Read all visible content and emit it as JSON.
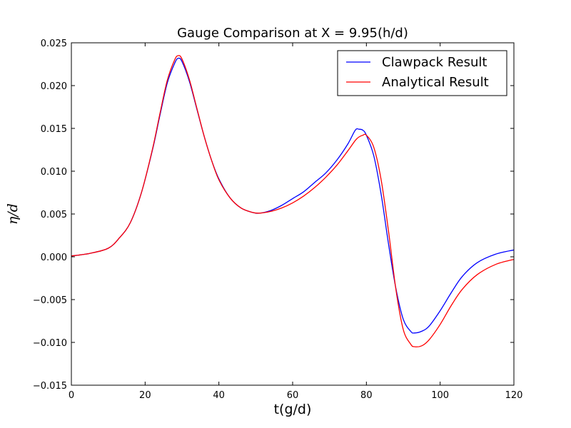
{
  "chart_data": {
    "type": "line",
    "title": "Gauge Comparison at X = 9.95(h/d)",
    "xlabel": "t(g/d)",
    "ylabel": "η/d",
    "xlim": [
      0,
      120
    ],
    "ylim": [
      -0.015,
      0.025
    ],
    "xticks": [
      0,
      20,
      40,
      60,
      80,
      100,
      120
    ],
    "xtick_labels": [
      "0",
      "20",
      "40",
      "60",
      "80",
      "100",
      "120"
    ],
    "yticks": [
      -0.015,
      -0.01,
      -0.005,
      0,
      0.005,
      0.01,
      0.015,
      0.02,
      0.025
    ],
    "ytick_labels": [
      "−0.015",
      "−0.010",
      "−0.005",
      "0.000",
      "0.005",
      "0.010",
      "0.015",
      "0.020",
      "0.025"
    ],
    "grid": false,
    "legend_position": "top-right",
    "series": [
      {
        "name": "Clawpack Result",
        "color": "#0000ff",
        "x": [
          0,
          5,
          10,
          13,
          16,
          19,
          22,
          24,
          26,
          28,
          29,
          30,
          32,
          34,
          36,
          38,
          40,
          43,
          46,
          49,
          51,
          54,
          57,
          60,
          63,
          66,
          69,
          72,
          75,
          77,
          78,
          79,
          80,
          82,
          84,
          86,
          88,
          90,
          92,
          93,
          95,
          97,
          100,
          103,
          106,
          110,
          115,
          120
        ],
        "y": [
          0.0001,
          0.0004,
          0.001,
          0.0022,
          0.004,
          0.0075,
          0.0125,
          0.0165,
          0.0203,
          0.0226,
          0.0232,
          0.0228,
          0.0205,
          0.0173,
          0.0141,
          0.0113,
          0.0091,
          0.0069,
          0.0057,
          0.0052,
          0.0051,
          0.0054,
          0.006,
          0.0068,
          0.0076,
          0.0087,
          0.0098,
          0.0113,
          0.0132,
          0.0148,
          0.0149,
          0.0148,
          0.0142,
          0.0118,
          0.0073,
          0.0015,
          -0.0037,
          -0.0073,
          -0.0087,
          -0.0089,
          -0.0087,
          -0.0081,
          -0.0063,
          -0.0042,
          -0.0023,
          -0.0007,
          0.0003,
          0.0008
        ]
      },
      {
        "name": "Analytical Result",
        "color": "#ff0000",
        "x": [
          0,
          5,
          10,
          13,
          16,
          19,
          22,
          24,
          26,
          28,
          29,
          30,
          32,
          34,
          36,
          38,
          40,
          43,
          46,
          49,
          51,
          54,
          57,
          60,
          63,
          66,
          69,
          72,
          75,
          77,
          78,
          79,
          80,
          82,
          84,
          86,
          88,
          90,
          92,
          93,
          95,
          97,
          100,
          103,
          106,
          110,
          115,
          120
        ],
        "y": [
          0.0001,
          0.0004,
          0.001,
          0.0022,
          0.004,
          0.0075,
          0.0126,
          0.0167,
          0.0206,
          0.023,
          0.0235,
          0.0231,
          0.0207,
          0.0174,
          0.0141,
          0.0113,
          0.009,
          0.0069,
          0.0057,
          0.0052,
          0.0051,
          0.0053,
          0.0057,
          0.0063,
          0.0071,
          0.0081,
          0.0093,
          0.0107,
          0.0124,
          0.0136,
          0.014,
          0.0142,
          0.0142,
          0.0128,
          0.009,
          0.003,
          -0.0038,
          -0.0085,
          -0.0102,
          -0.0105,
          -0.0104,
          -0.0097,
          -0.0079,
          -0.0057,
          -0.0038,
          -0.0021,
          -0.0009,
          -0.0003
        ]
      }
    ]
  }
}
